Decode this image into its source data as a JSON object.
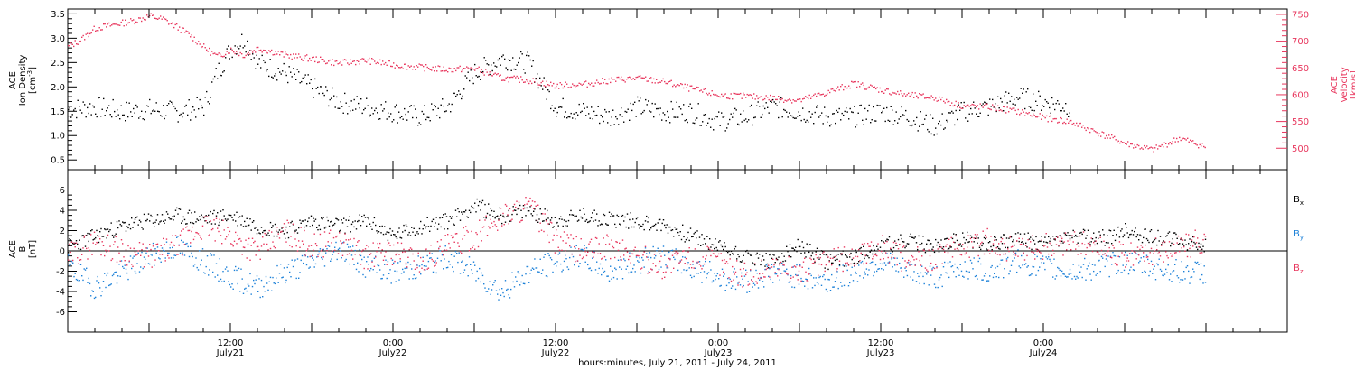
{
  "chart_data": [
    {
      "type": "scatter",
      "panel": "top",
      "y_left_title": [
        "ACE",
        "Ion Density",
        "[cm-3]"
      ],
      "y_left_ticks": [
        0.5,
        1.0,
        1.5,
        2.0,
        2.5,
        3.0,
        3.5
      ],
      "ylim_left": [
        0.3,
        3.6
      ],
      "y_right_title": [
        "ACE",
        "Velocity",
        "[km/s]"
      ],
      "y_right_ticks": [
        500,
        550,
        600,
        650,
        700,
        750
      ],
      "ylim_right": [
        460,
        760
      ],
      "series": [
        {
          "axis": "left",
          "color": "#000000",
          "points": [
            [
              0,
              1.55
            ],
            [
              2,
              1.6
            ],
            [
              4,
              1.5
            ],
            [
              6,
              1.55
            ],
            [
              8,
              1.5
            ],
            [
              10,
              1.6
            ],
            [
              11,
              2.3
            ],
            [
              12,
              2.8
            ],
            [
              13,
              3.0
            ],
            [
              14,
              2.5
            ],
            [
              16,
              2.3
            ],
            [
              18,
              2.0
            ],
            [
              20,
              1.7
            ],
            [
              22,
              1.6
            ],
            [
              24,
              1.5
            ],
            [
              26,
              1.4
            ],
            [
              28,
              1.6
            ],
            [
              30,
              2.3
            ],
            [
              32,
              2.6
            ],
            [
              34,
              2.5
            ],
            [
              36,
              1.6
            ],
            [
              38,
              1.5
            ],
            [
              40,
              1.4
            ],
            [
              42,
              1.6
            ],
            [
              44,
              1.5
            ],
            [
              46,
              1.5
            ],
            [
              48,
              1.3
            ],
            [
              50,
              1.4
            ],
            [
              52,
              1.6
            ],
            [
              54,
              1.5
            ],
            [
              56,
              1.4
            ],
            [
              58,
              1.4
            ],
            [
              60,
              1.5
            ],
            [
              62,
              1.4
            ],
            [
              64,
              1.2
            ],
            [
              66,
              1.5
            ],
            [
              68,
              1.6
            ],
            [
              70,
              1.8
            ],
            [
              72,
              1.7
            ],
            [
              74,
              1.6
            ]
          ]
        },
        {
          "axis": "right",
          "color": "#e8365d",
          "points": [
            [
              0,
              690
            ],
            [
              1,
              705
            ],
            [
              2,
              725
            ],
            [
              3,
              730
            ],
            [
              4,
              735
            ],
            [
              5,
              740
            ],
            [
              6,
              748
            ],
            [
              7,
              742
            ],
            [
              8,
              728
            ],
            [
              9,
              712
            ],
            [
              10,
              690
            ],
            [
              11,
              672
            ],
            [
              12,
              685
            ],
            [
              13,
              675
            ],
            [
              14,
              688
            ],
            [
              15,
              682
            ],
            [
              16,
              675
            ],
            [
              18,
              668
            ],
            [
              20,
              660
            ],
            [
              22,
              665
            ],
            [
              24,
              657
            ],
            [
              26,
              652
            ],
            [
              28,
              648
            ],
            [
              30,
              650
            ],
            [
              32,
              632
            ],
            [
              34,
              628
            ],
            [
              36,
              618
            ],
            [
              38,
              620
            ],
            [
              40,
              628
            ],
            [
              42,
              632
            ],
            [
              44,
              625
            ],
            [
              46,
              612
            ],
            [
              48,
              600
            ],
            [
              50,
              598
            ],
            [
              52,
              595
            ],
            [
              54,
              590
            ],
            [
              56,
              605
            ],
            [
              58,
              622
            ],
            [
              60,
              610
            ],
            [
              62,
              600
            ],
            [
              64,
              595
            ],
            [
              66,
              580
            ],
            [
              68,
              578
            ],
            [
              70,
              570
            ],
            [
              72,
              558
            ],
            [
              74,
              550
            ],
            [
              76,
              530
            ],
            [
              78,
              510
            ],
            [
              80,
              498
            ],
            [
              81,
              508
            ],
            [
              82,
              520
            ],
            [
              84,
              503
            ]
          ]
        }
      ]
    },
    {
      "type": "scatter",
      "panel": "bottom",
      "y_title": [
        "ACE",
        "B",
        "[nT]"
      ],
      "y_ticks": [
        -6,
        -4,
        -2,
        0,
        2,
        4,
        6
      ],
      "ylim": [
        -8,
        8
      ],
      "zero_line": true,
      "series": [
        {
          "name": "Bx",
          "color": "#000000",
          "points": [
            [
              0,
              0.5
            ],
            [
              2,
              1.5
            ],
            [
              4,
              2.5
            ],
            [
              6,
              3.0
            ],
            [
              8,
              3.5
            ],
            [
              10,
              3.2
            ],
            [
              12,
              3.5
            ],
            [
              14,
              2.5
            ],
            [
              16,
              2.0
            ],
            [
              18,
              3.0
            ],
            [
              20,
              2.5
            ],
            [
              22,
              3.0
            ],
            [
              24,
              1.5
            ],
            [
              26,
              2.5
            ],
            [
              28,
              3.0
            ],
            [
              30,
              4.5
            ],
            [
              32,
              3.5
            ],
            [
              34,
              4.0
            ],
            [
              36,
              3.0
            ],
            [
              38,
              3.5
            ],
            [
              40,
              3.2
            ],
            [
              42,
              3.0
            ],
            [
              44,
              2.5
            ],
            [
              46,
              1.5
            ],
            [
              48,
              0.5
            ],
            [
              50,
              -0.5
            ],
            [
              52,
              -1.0
            ],
            [
              54,
              0.5
            ],
            [
              56,
              -1.0
            ],
            [
              58,
              -0.5
            ],
            [
              60,
              0.5
            ],
            [
              62,
              1.0
            ],
            [
              64,
              0.5
            ],
            [
              66,
              1.2
            ],
            [
              68,
              0.8
            ],
            [
              70,
              1.2
            ],
            [
              72,
              0.8
            ],
            [
              74,
              1.5
            ],
            [
              76,
              1.2
            ],
            [
              78,
              2.0
            ],
            [
              80,
              1.5
            ],
            [
              82,
              1.0
            ],
            [
              84,
              0.5
            ]
          ]
        },
        {
          "name": "By",
          "color": "#1b80d8",
          "points": [
            [
              0,
              -1.5
            ],
            [
              2,
              -3.5
            ],
            [
              4,
              -2.0
            ],
            [
              6,
              -0.5
            ],
            [
              8,
              0.5
            ],
            [
              10,
              -1.0
            ],
            [
              12,
              -2.5
            ],
            [
              14,
              -3.5
            ],
            [
              16,
              -2.0
            ],
            [
              18,
              -1.0
            ],
            [
              20,
              0.5
            ],
            [
              22,
              -1.5
            ],
            [
              24,
              -2.0
            ],
            [
              26,
              -1.5
            ],
            [
              28,
              -0.5
            ],
            [
              30,
              -2.0
            ],
            [
              32,
              -4.0
            ],
            [
              34,
              -2.0
            ],
            [
              36,
              -1.0
            ],
            [
              38,
              -0.5
            ],
            [
              40,
              -2.0
            ],
            [
              42,
              -1.0
            ],
            [
              44,
              -0.5
            ],
            [
              46,
              -1.5
            ],
            [
              48,
              -2.5
            ],
            [
              50,
              -3.0
            ],
            [
              52,
              -2.0
            ],
            [
              54,
              -2.5
            ],
            [
              56,
              -3.0
            ],
            [
              58,
              -2.0
            ],
            [
              60,
              -1.0
            ],
            [
              62,
              -2.0
            ],
            [
              64,
              -2.5
            ],
            [
              66,
              -1.5
            ],
            [
              68,
              -2.0
            ],
            [
              70,
              -1.0
            ],
            [
              72,
              -1.5
            ],
            [
              74,
              -2.0
            ],
            [
              76,
              -1.5
            ],
            [
              78,
              -1.0
            ],
            [
              80,
              -1.5
            ],
            [
              82,
              -2.0
            ],
            [
              84,
              -2.0
            ]
          ]
        },
        {
          "name": "Bz",
          "color": "#e8365d",
          "points": [
            [
              0,
              -0.5
            ],
            [
              2,
              1.0
            ],
            [
              4,
              0.0
            ],
            [
              6,
              -0.5
            ],
            [
              8,
              0.5
            ],
            [
              10,
              2.5
            ],
            [
              12,
              1.5
            ],
            [
              14,
              0.0
            ],
            [
              16,
              2.0
            ],
            [
              18,
              0.5
            ],
            [
              20,
              1.0
            ],
            [
              22,
              -0.5
            ],
            [
              24,
              0.0
            ],
            [
              26,
              -1.0
            ],
            [
              28,
              0.5
            ],
            [
              30,
              1.5
            ],
            [
              32,
              3.5
            ],
            [
              34,
              4.5
            ],
            [
              36,
              1.0
            ],
            [
              38,
              0.0
            ],
            [
              40,
              0.5
            ],
            [
              42,
              -0.5
            ],
            [
              44,
              -1.5
            ],
            [
              46,
              -0.5
            ],
            [
              48,
              -1.0
            ],
            [
              50,
              -2.5
            ],
            [
              52,
              -1.5
            ],
            [
              54,
              -2.0
            ],
            [
              56,
              -1.0
            ],
            [
              58,
              -0.5
            ],
            [
              60,
              0.5
            ],
            [
              62,
              -1.0
            ],
            [
              64,
              -0.5
            ],
            [
              66,
              0.5
            ],
            [
              68,
              1.0
            ],
            [
              70,
              0.0
            ],
            [
              72,
              0.5
            ],
            [
              74,
              1.0
            ],
            [
              76,
              0.5
            ],
            [
              78,
              -0.5
            ],
            [
              80,
              0.0
            ],
            [
              82,
              0.5
            ],
            [
              84,
              1.0
            ]
          ]
        }
      ]
    }
  ],
  "x_axis": {
    "xlim_hours": [
      0,
      90
    ],
    "major_ticks": [
      {
        "hour": 12,
        "time": "12:00",
        "date": "July21"
      },
      {
        "hour": 24,
        "time": "0:00",
        "date": "July22"
      },
      {
        "hour": 36,
        "time": "12:00",
        "date": "July22"
      },
      {
        "hour": 48,
        "time": "0:00",
        "date": "July23"
      },
      {
        "hour": 60,
        "time": "12:00",
        "date": "July23"
      },
      {
        "hour": 72,
        "time": "0:00",
        "date": "July24"
      }
    ],
    "title": "hours:minutes, July 21, 2011 - July 24, 2011"
  },
  "legend": {
    "placement": "right",
    "items": [
      {
        "base": "B",
        "sub": "x",
        "color": "#000000"
      },
      {
        "base": "B",
        "sub": "y",
        "color": "#1b80d8"
      },
      {
        "base": "B",
        "sub": "z",
        "color": "#e8365d"
      }
    ]
  }
}
